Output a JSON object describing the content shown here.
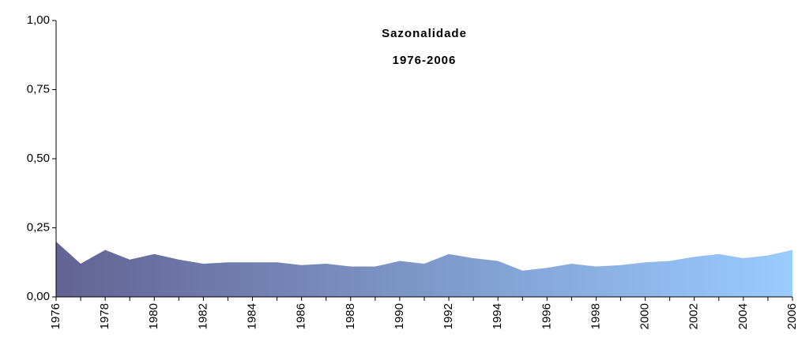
{
  "chart_data": {
    "type": "area",
    "title": "Sazonalidade",
    "subtitle": "1976-2006",
    "categories": [
      "1976",
      null,
      "1978",
      null,
      "1980",
      null,
      "1982",
      null,
      "1984",
      null,
      "1986",
      null,
      "1988",
      null,
      "1990",
      null,
      "1992",
      null,
      "1994",
      null,
      "1996",
      null,
      "1998",
      null,
      "2000",
      null,
      "2002",
      null,
      "2004",
      null,
      "2006"
    ],
    "values": [
      0.2,
      0.12,
      0.17,
      0.135,
      0.155,
      0.135,
      0.12,
      0.125,
      0.125,
      0.125,
      0.115,
      0.12,
      0.11,
      0.11,
      0.13,
      0.12,
      0.155,
      0.14,
      0.13,
      0.095,
      0.105,
      0.12,
      0.11,
      0.115,
      0.125,
      0.13,
      0.145,
      0.155,
      0.14,
      0.15,
      0.17
    ],
    "gradient": [
      "#636394",
      "#99ccff"
    ],
    "ylim": [
      0,
      1
    ],
    "yticks": [
      {
        "value": 0,
        "label": "0,00"
      },
      {
        "value": 0.25,
        "label": "0,25"
      },
      {
        "value": 0.5,
        "label": "0,50"
      },
      {
        "value": 0.75,
        "label": "0,75"
      },
      {
        "value": 1,
        "label": "1,00"
      }
    ],
    "grid": false
  }
}
